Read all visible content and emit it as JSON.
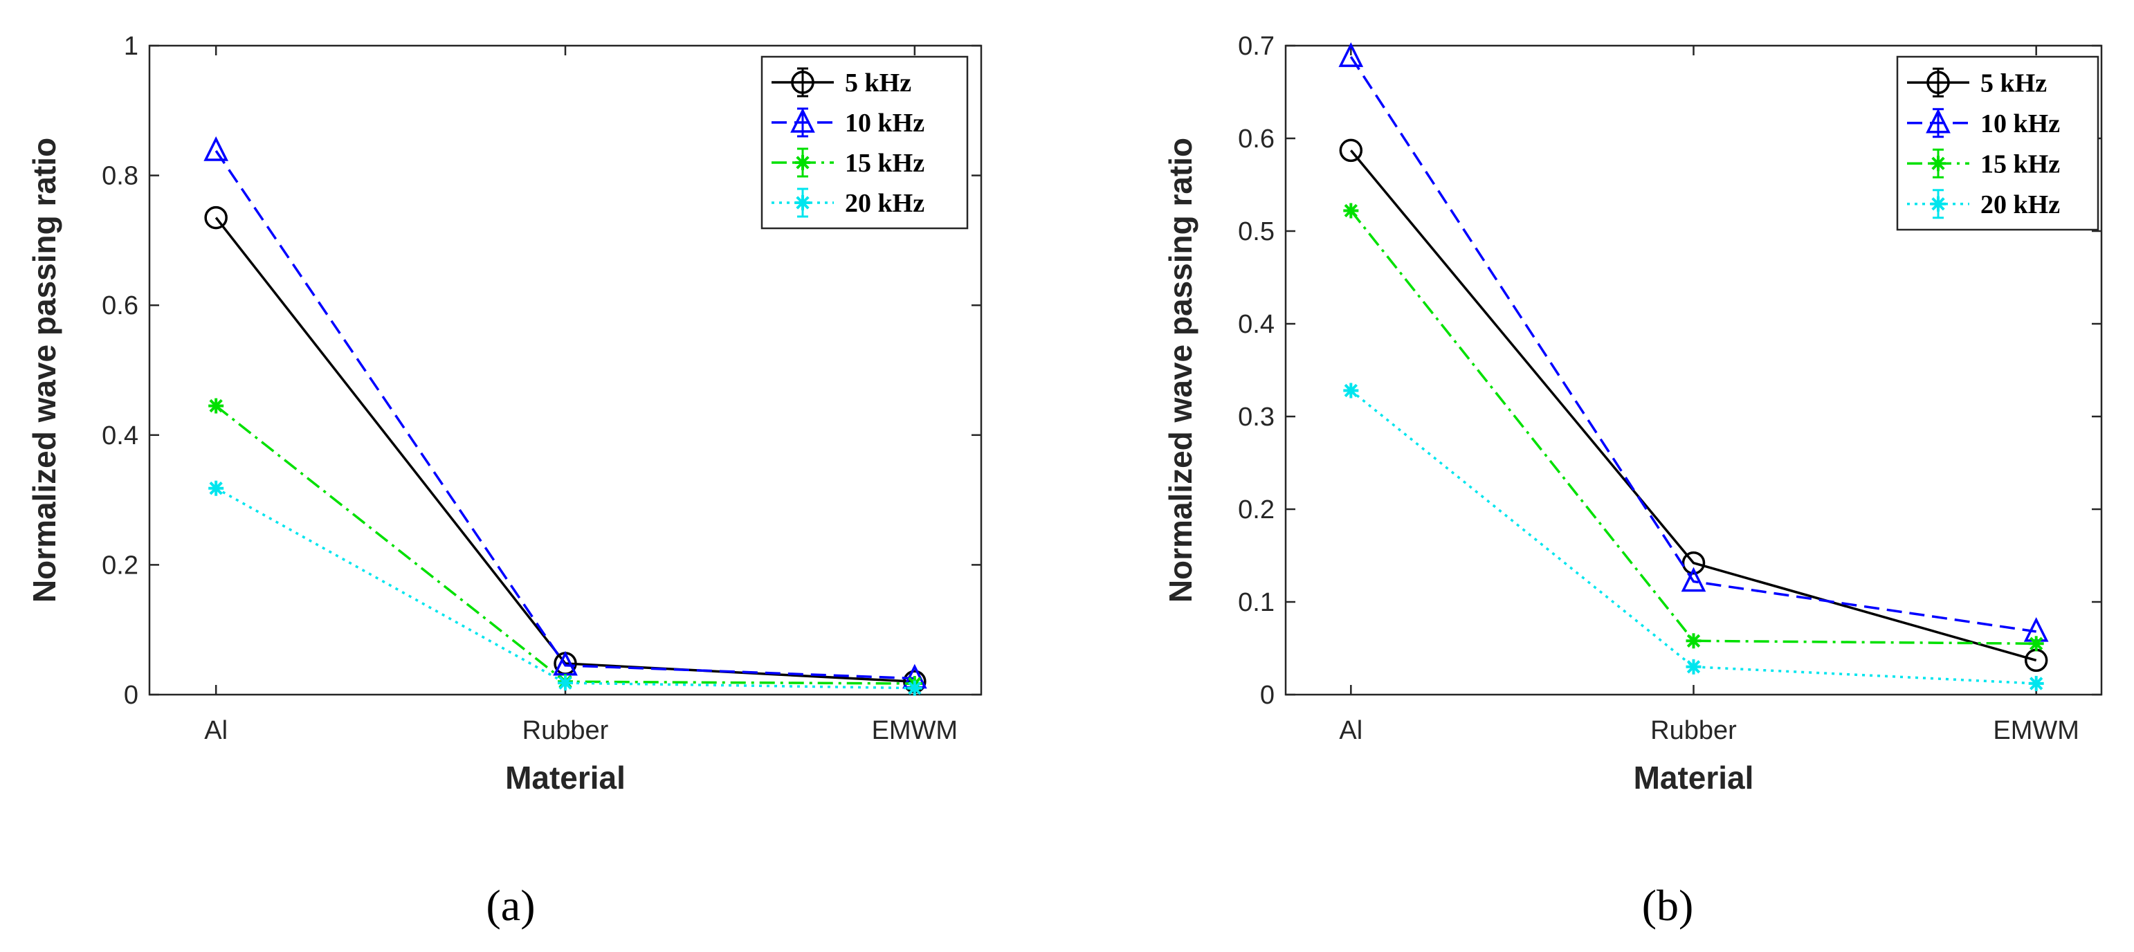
{
  "chart_data": [
    {
      "type": "line",
      "panel_label": "(a)",
      "xlabel": "Material",
      "ylabel": "Normalized wave passing ratio",
      "categories": [
        "Al",
        "Rubber",
        "EMWM"
      ],
      "ylim": [
        0,
        1
      ],
      "yticks": [
        "0",
        "0.2",
        "0.4",
        "0.6",
        "0.8",
        "1"
      ],
      "yticks_values": [
        0,
        0.2,
        0.4,
        0.6,
        0.8,
        1
      ],
      "legend_position": "top-right",
      "series": [
        {
          "name": "5 kHz",
          "values": [
            0.735,
            0.048,
            0.02
          ],
          "color": "#000000",
          "dash": "solid",
          "marker": "circle"
        },
        {
          "name": "10 kHz",
          "values": [
            0.838,
            0.045,
            0.025
          ],
          "color": "#0000FF",
          "dash": "dashed",
          "marker": "triangle"
        },
        {
          "name": "15 kHz",
          "values": [
            0.445,
            0.02,
            0.017
          ],
          "color": "#00E000",
          "dash": "dashdot",
          "marker": "asterisk"
        },
        {
          "name": "20 kHz",
          "values": [
            0.318,
            0.018,
            0.01
          ],
          "color": "#00E5EE",
          "dash": "dotted",
          "marker": "asterisk"
        }
      ]
    },
    {
      "type": "line",
      "panel_label": "(b)",
      "xlabel": "Material",
      "ylabel": "Normalized wave passing ratio",
      "categories": [
        "Al",
        "Rubber",
        "EMWM"
      ],
      "ylim": [
        0,
        0.7
      ],
      "yticks": [
        "0",
        "0.1",
        "0.2",
        "0.3",
        "0.4",
        "0.5",
        "0.6",
        "0.7"
      ],
      "yticks_values": [
        0,
        0.1,
        0.2,
        0.3,
        0.4,
        0.5,
        0.6,
        0.7
      ],
      "legend_position": "top-right",
      "series": [
        {
          "name": "5 kHz",
          "values": [
            0.587,
            0.142,
            0.037
          ],
          "color": "#000000",
          "dash": "solid",
          "marker": "circle"
        },
        {
          "name": "10 kHz",
          "values": [
            0.688,
            0.122,
            0.068
          ],
          "color": "#0000FF",
          "dash": "dashed",
          "marker": "triangle"
        },
        {
          "name": "15 kHz",
          "values": [
            0.522,
            0.058,
            0.055
          ],
          "color": "#00E000",
          "dash": "dashdot",
          "marker": "asterisk"
        },
        {
          "name": "20 kHz",
          "values": [
            0.328,
            0.03,
            0.012
          ],
          "color": "#00E5EE",
          "dash": "dotted",
          "marker": "asterisk"
        }
      ]
    }
  ]
}
